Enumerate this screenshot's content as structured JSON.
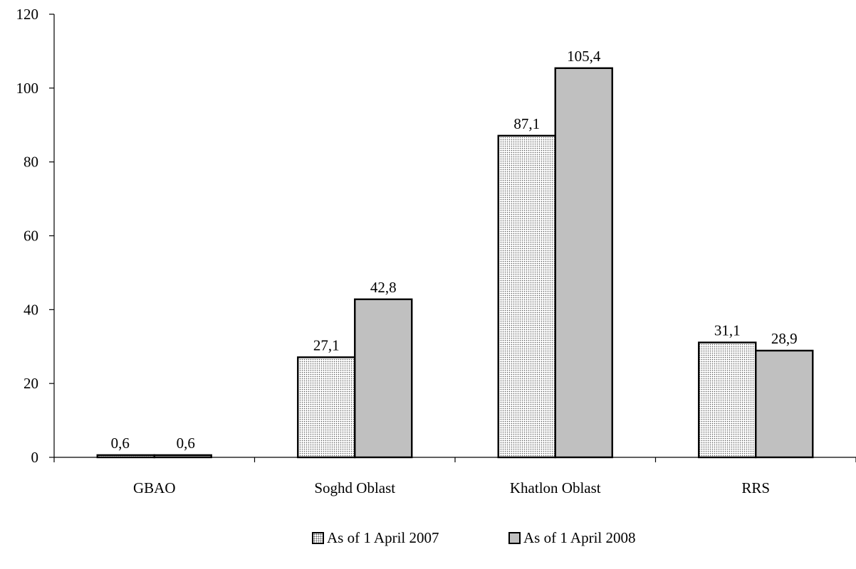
{
  "chart_data": {
    "type": "bar",
    "categories": [
      "GBAO",
      "Soghd Oblast",
      "Khatlon Oblast",
      "RRS"
    ],
    "series": [
      {
        "name": "As of 1 April 2007",
        "values": [
          0.6,
          27.1,
          87.1,
          31.1
        ],
        "labels": [
          "0,6",
          "27,1",
          "87,1",
          "31,1"
        ],
        "fill": "#ffffff",
        "pattern": "dotted"
      },
      {
        "name": "As of 1 April 2008",
        "values": [
          0.6,
          42.8,
          105.4,
          28.9
        ],
        "labels": [
          "0,6",
          "42,8",
          "105,4",
          "28,9"
        ],
        "fill": "#c0c0c0",
        "pattern": "solid"
      }
    ],
    "ylim": [
      0,
      120
    ],
    "yticks": [
      0,
      20,
      40,
      60,
      80,
      100,
      120
    ],
    "title": "",
    "xlabel": "",
    "ylabel": "",
    "grid": false,
    "legend_position": "bottom"
  }
}
